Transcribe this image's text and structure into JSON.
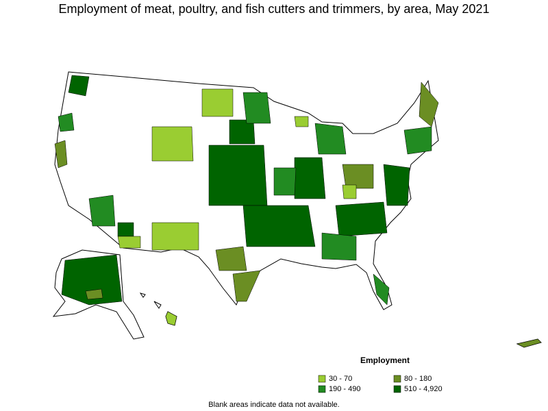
{
  "title": "Employment of meat, poultry, and fish cutters and trimmers, by area, May 2021",
  "legend": {
    "title": "Employment",
    "items": [
      {
        "label": "30 - 70",
        "color": "#9acd32"
      },
      {
        "label": "80 - 180",
        "color": "#6b8e23"
      },
      {
        "label": "190 - 490",
        "color": "#228b22"
      },
      {
        "label": "510 - 4,920",
        "color": "#006400"
      }
    ]
  },
  "note": "Blank areas indicate data not available."
}
